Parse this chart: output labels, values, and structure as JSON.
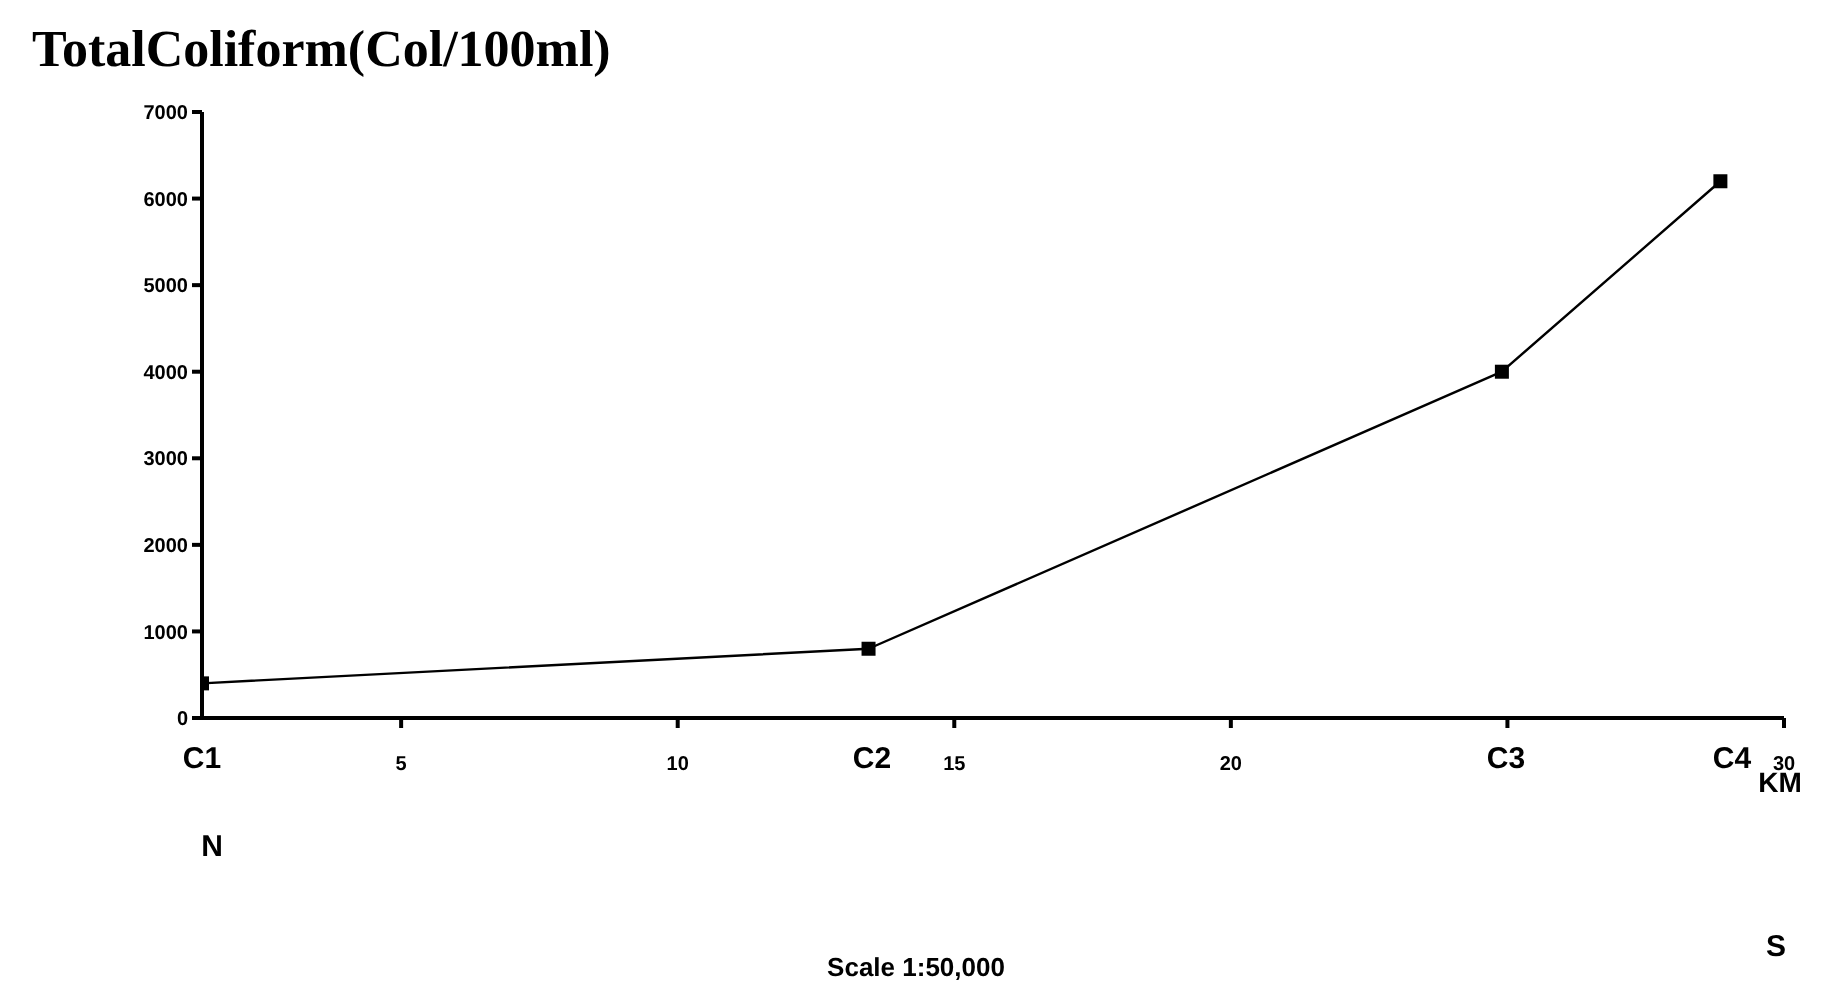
{
  "chart_data": {
    "type": "line",
    "title": "TotalColiform(Col/100ml)",
    "xlabel": "KM",
    "x": [
      1.4,
      13.45,
      24.9,
      28.85
    ],
    "series": [
      {
        "color": "#000000",
        "values": [
          400,
          800,
          4000,
          6200
        ]
      }
    ],
    "xlim": [
      1.4,
      30
    ],
    "xticks": [
      5,
      10,
      15,
      20,
      {
        "value": 25,
        "label": null
      },
      30
    ],
    "ylim": [
      0,
      7000
    ],
    "yticks": [
      0,
      1000,
      2000,
      3000,
      4000,
      5000,
      6000,
      7000
    ],
    "marker": "square",
    "line_style": "solid",
    "grid": false,
    "legend": false,
    "annotations": [
      "C1",
      "C2",
      "C3",
      "C4",
      "N",
      "Scale 1:50,000",
      "S"
    ]
  }
}
